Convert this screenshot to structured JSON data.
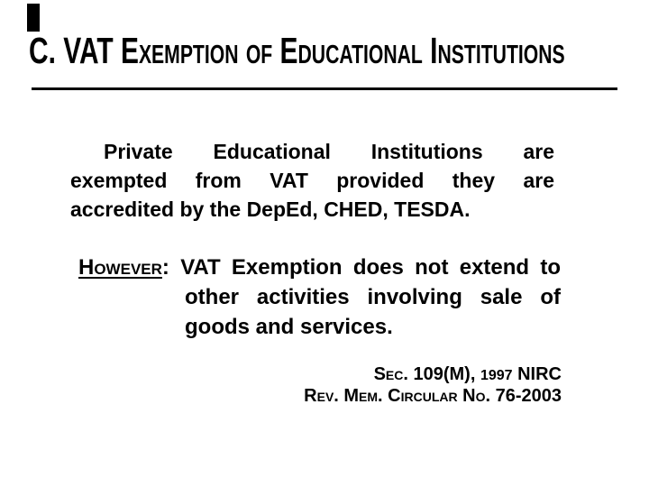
{
  "page": {
    "background_color": "#ffffff",
    "text_color": "#000000",
    "accent_color": "#000000"
  },
  "decoration": {
    "corner_bar_color": "#000000",
    "title_rule_color": "#000000"
  },
  "title": {
    "text": "C. VAT Exemption of Educational Institutions"
  },
  "body": {
    "paragraph1": {
      "lines": [
        "Private Educational Institutions are",
        "exempted from VAT provided they are",
        "accredited by the DepEd, CHED, TESDA."
      ]
    },
    "however": {
      "label": "However",
      "colon": ":",
      "lines": [
        "VAT Exemption does not extend to",
        "other activities involving sale of",
        "goods and services."
      ]
    }
  },
  "citation": {
    "line1_prefix": "Sec. 109(M),",
    "line1_year": "1997",
    "line1_suffix": "NIRC",
    "line2": "Rev. Mem. Circular No. 76-2003"
  }
}
